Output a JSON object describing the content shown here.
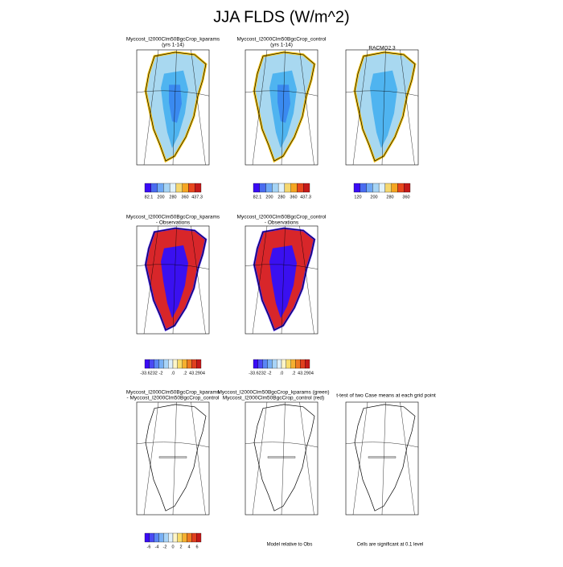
{
  "title": "JJA FLDS (W/m^2)",
  "panels": [
    {
      "title": [
        "Myccost_I2000Clm50BgcCrop_kparams",
        "(yrs 1-14)"
      ],
      "colorbar": [
        "82.1",
        "200",
        "280",
        "360",
        "437.3"
      ]
    },
    {
      "title": [
        "Myccost_I2000Clm50BgcCrop_control",
        "(yrs 1-14)"
      ],
      "colorbar": [
        "82.1",
        "200",
        "280",
        "360",
        "437.3"
      ]
    },
    {
      "title": [
        "RACMO2.3"
      ],
      "colorbar": [
        "120",
        "200",
        "280",
        "360"
      ]
    },
    {
      "title": [
        "Myccost_I2000Clm50BgcCrop_kparams",
        "- Observations"
      ],
      "colorbar": [
        "-33.6232",
        "-2",
        ".0",
        ".2",
        "43.2904"
      ]
    },
    {
      "title": [
        "Myccost_I2000Clm50BgcCrop_control",
        "- Observations"
      ],
      "colorbar": [
        "-33.6232",
        "-2",
        ".0",
        ".2",
        "43.2904"
      ]
    },
    {
      "title": [
        "Myccost_I2000Clm50BgcCrop_kparams",
        "- Myccost_I2000Clm50BgcCrop_control"
      ],
      "colorbar": [
        "-6",
        "-4",
        "-2",
        "0",
        "2",
        "4",
        "6"
      ]
    },
    {
      "title": [
        "Myccost_I2000Clm50BgcCrop_kparams (green)",
        "Myccost_I2000Clm50BgcCrop_control (red)"
      ]
    },
    {
      "title": [
        "t-test of two Case means at each grid point"
      ]
    }
  ],
  "notes": [
    "Model relative to Obs",
    "Cells are significant at 0.1 level"
  ]
}
